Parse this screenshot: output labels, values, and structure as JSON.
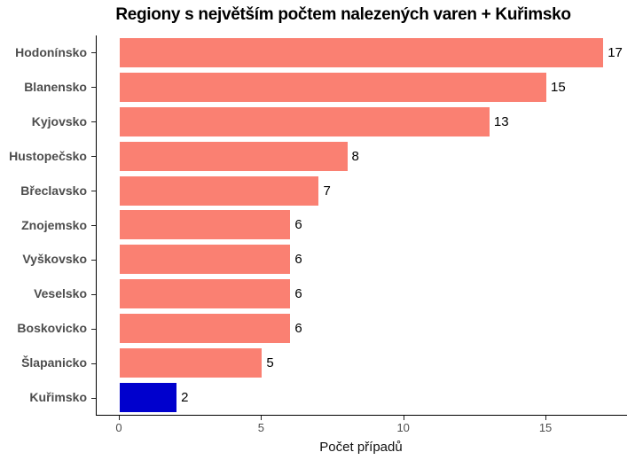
{
  "chart_data": {
    "type": "bar",
    "orientation": "horizontal",
    "title": "Regiony s největším počtem nalezených varen + Kuřimsko",
    "xlabel": "Počet případů",
    "ylabel": "",
    "categories": [
      "Hodonínsko",
      "Blanensko",
      "Kyjovsko",
      "Hustopečsko",
      "Břeclavsko",
      "Znojemsko",
      "Vyškovsko",
      "Veselsko",
      "Boskovicko",
      "Šlapanicko",
      "Kuřimsko"
    ],
    "values": [
      17,
      15,
      13,
      8,
      7,
      6,
      6,
      6,
      6,
      5,
      2
    ],
    "value_labels": [
      "17",
      "15",
      "13",
      "8",
      "7",
      "6",
      "6",
      "6",
      "6",
      "5",
      "2"
    ],
    "x_ticks": [
      0,
      5,
      10,
      15
    ],
    "xlim": [
      0,
      17.85
    ],
    "grid": false,
    "legend": false,
    "highlight_category": "Kuřimsko",
    "colors": {
      "bar": "#FA8072",
      "highlight_bar": "#0000CD",
      "axis_text": "#4D4D4D",
      "axis_line": "#000000",
      "value_label": "#000000",
      "title": "#000000",
      "background": "#FFFFFF"
    }
  }
}
